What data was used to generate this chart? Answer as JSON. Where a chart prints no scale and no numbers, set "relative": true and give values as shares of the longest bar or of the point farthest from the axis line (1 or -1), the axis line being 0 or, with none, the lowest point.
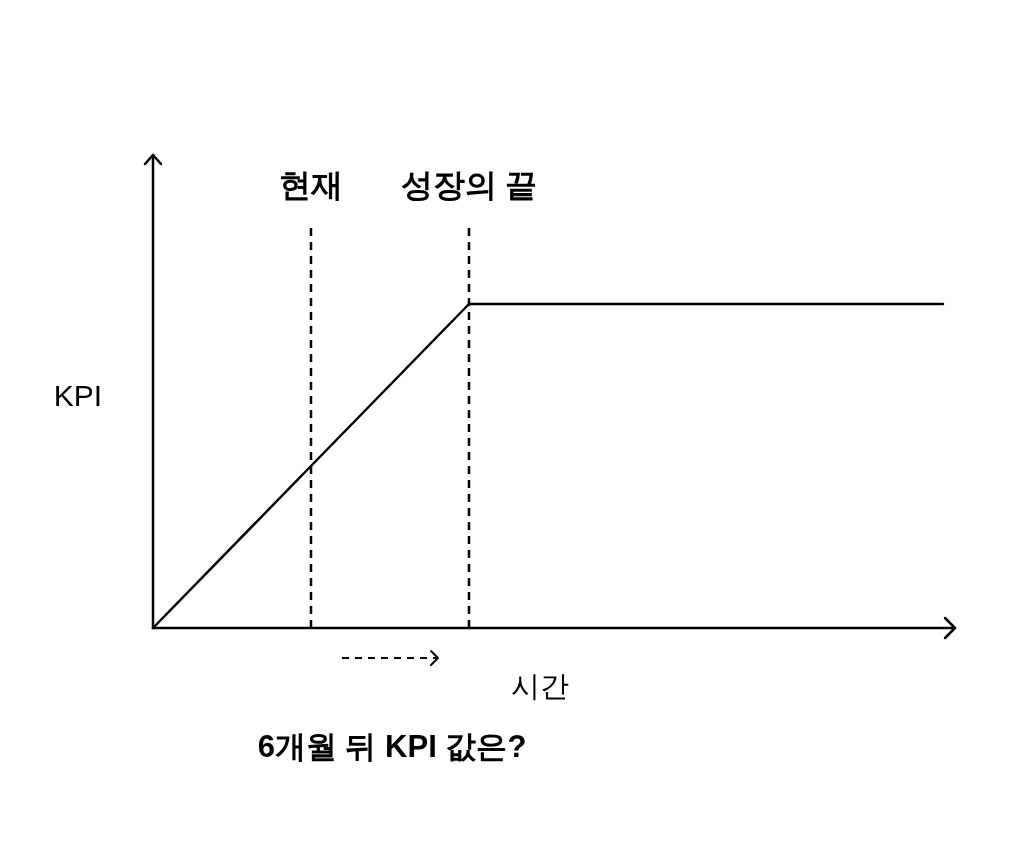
{
  "chart_data": {
    "type": "line",
    "relative": true,
    "title": "6개월 뒤 KPI 값은?",
    "xlabel": "시간",
    "ylabel": "KPI",
    "categories": [
      null,
      null,
      null,
      null,
      null,
      null
    ],
    "series": [
      {
        "color": "#000000",
        "values": [
          0,
          0.5,
          1,
          1,
          1,
          1
        ]
      }
    ],
    "annotations": [
      "현재",
      "성장의 끝"
    ],
    "line_style": "solid"
  }
}
